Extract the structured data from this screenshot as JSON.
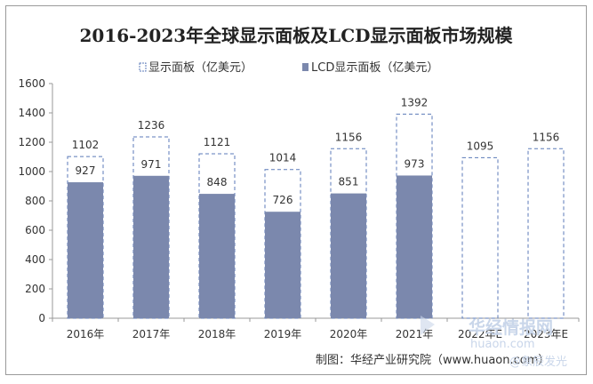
{
  "chart_data": {
    "type": "bar",
    "title": "2016-2023年全球显示面板及LCD显示面板市场规模",
    "categories": [
      "2016年",
      "2017年",
      "2018年",
      "2019年",
      "2020年",
      "2021年",
      "2022年E",
      "2023年E"
    ],
    "series": [
      {
        "name": "显示面板（亿美元）",
        "style": "dashed-outline",
        "values": [
          1102,
          1236,
          1121,
          1014,
          1156,
          1392,
          1095,
          1156
        ]
      },
      {
        "name": "LCD显示面板（亿美元）",
        "style": "filled",
        "values": [
          927,
          971,
          848,
          726,
          851,
          973,
          null,
          null
        ]
      }
    ],
    "ylim": [
      0,
      1600
    ],
    "yticks": [
      0,
      200,
      400,
      600,
      800,
      1000,
      1200,
      1400,
      1600
    ],
    "xlabel": "",
    "ylabel": "",
    "grid": false,
    "legend_position": "top-center",
    "source": "制图：华经产业研究院（www.huaon.com）"
  },
  "colors": {
    "lcd_fill": "#7b88ad",
    "panel_border": "#5b7ab8",
    "axis": "#999999"
  },
  "watermark": {
    "brand": "华经情报网",
    "url": "huaon.com",
    "handle": "@象辰发光"
  }
}
